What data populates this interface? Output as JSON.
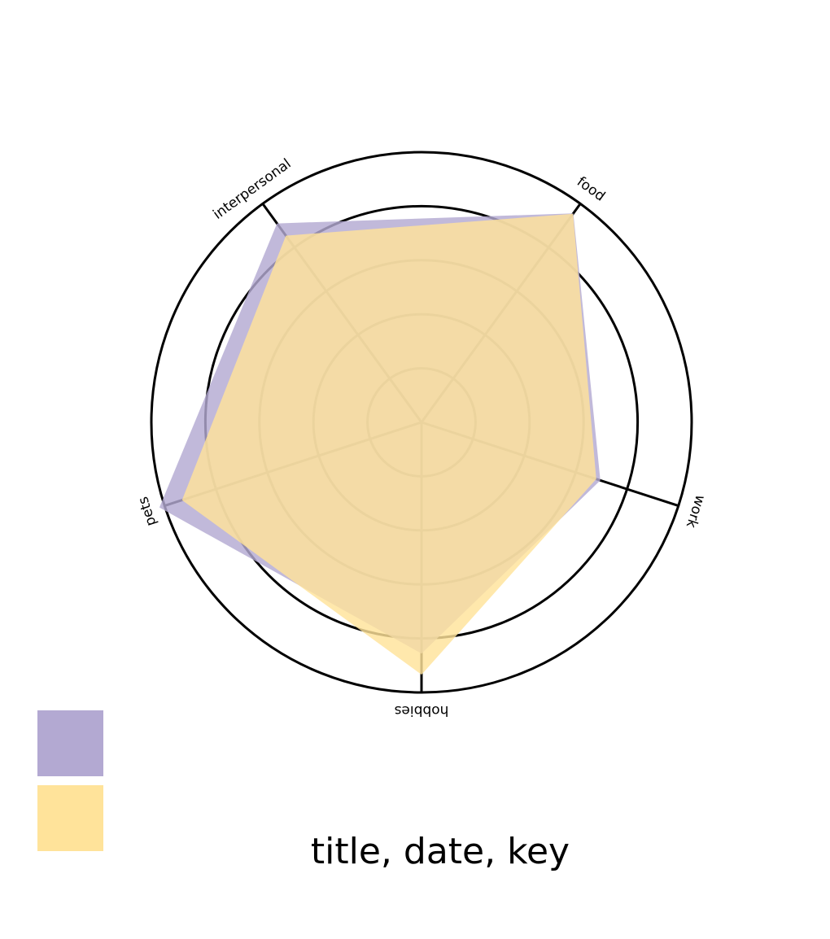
{
  "chart_data": {
    "type": "radar",
    "title": "title, date, key",
    "categories": [
      "food",
      "work",
      "hobbies",
      "pets",
      "interpersonal"
    ],
    "series": [
      {
        "color": "#b3a9d2",
        "values": [
          4.78,
          3.48,
          4.28,
          5.1,
          4.55
        ]
      },
      {
        "color": "#ffe39a",
        "values": [
          4.77,
          3.4,
          4.67,
          4.66,
          4.27
        ]
      }
    ],
    "ylim": [
      0,
      5
    ],
    "yticks": [
      1,
      2,
      3,
      4,
      5
    ],
    "grid": true
  }
}
